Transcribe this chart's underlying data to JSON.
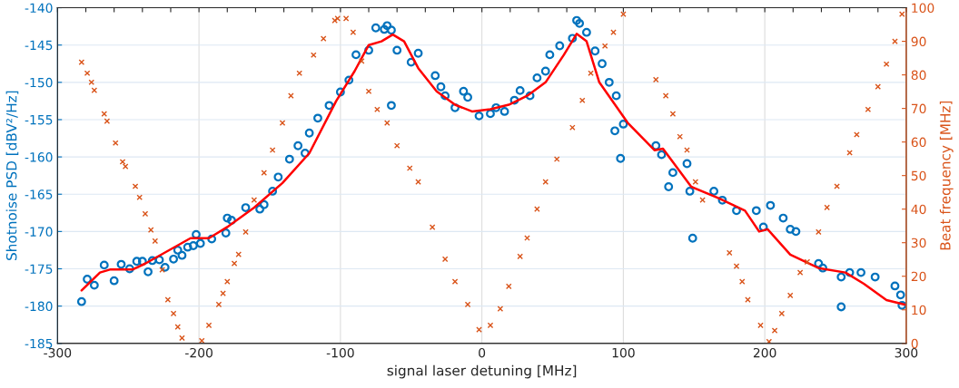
{
  "chart_data": {
    "type": "scatter",
    "xlabel": "signal laser detuning [MHz]",
    "ylabel": "Shotnoise PSD [dBV²/Hz]",
    "y2label": "Beat frequency [MHz]",
    "xlim": [
      -300,
      300
    ],
    "xticks": [
      -300,
      {
        "value": -280,
        "label": null
      },
      {
        "value": -260,
        "label": null
      },
      {
        "value": -240,
        "label": null
      },
      {
        "value": -220,
        "label": null
      },
      -200,
      {
        "value": -180,
        "label": null
      },
      {
        "value": -160,
        "label": null
      },
      {
        "value": -140,
        "label": null
      },
      {
        "value": -120,
        "label": null
      },
      -100,
      {
        "value": -80,
        "label": null
      },
      {
        "value": -60,
        "label": null
      },
      {
        "value": -40,
        "label": null
      },
      {
        "value": -20,
        "label": null
      },
      0,
      {
        "value": 20,
        "label": null
      },
      {
        "value": 40,
        "label": null
      },
      {
        "value": 60,
        "label": null
      },
      {
        "value": 80,
        "label": null
      },
      100,
      {
        "value": 120,
        "label": null
      },
      {
        "value": 140,
        "label": null
      },
      {
        "value": 160,
        "label": null
      },
      {
        "value": 180,
        "label": null
      },
      200,
      {
        "value": 220,
        "label": null
      },
      {
        "value": 240,
        "label": null
      },
      {
        "value": 260,
        "label": null
      },
      {
        "value": 280,
        "label": null
      },
      300
    ],
    "ylim": [
      -185,
      -140
    ],
    "yticks": [
      -185,
      -180,
      -175,
      -170,
      -165,
      -160,
      -155,
      -150,
      -145,
      -140
    ],
    "y2lim": [
      0,
      100
    ],
    "y2ticks": [
      0,
      10,
      20,
      30,
      40,
      50,
      60,
      70,
      80,
      90,
      100
    ],
    "grid": true,
    "series": [
      {
        "marker": "circle",
        "color": "#0072bd",
        "x": [
          -283,
          -279,
          -274,
          -267,
          -260,
          -255,
          -249,
          -244,
          -240,
          -236,
          -233,
          -228,
          -224,
          -218,
          -215,
          -212,
          -208,
          -204,
          -202,
          -199,
          -191,
          -181,
          -180,
          -177,
          -167,
          -157,
          -154,
          -148,
          -144,
          -136,
          -130,
          -125,
          -122,
          -116,
          -108,
          -100,
          -94,
          -89,
          -80,
          -75,
          -69,
          -67,
          -64,
          -64,
          -60,
          -50,
          -45,
          -33,
          -29,
          -26,
          -19,
          -13,
          -10,
          -2,
          6,
          10,
          16,
          23,
          27,
          34,
          39,
          45,
          48,
          55,
          64,
          67,
          69,
          74,
          80,
          85,
          90,
          95,
          100,
          94,
          98,
          123,
          127,
          135,
          132,
          145,
          147,
          149,
          164,
          170,
          180,
          194,
          199,
          204,
          213,
          218,
          222,
          238,
          241,
          254,
          254,
          260,
          268,
          278,
          292,
          296,
          297
        ],
        "values": [
          -179.4,
          -176.4,
          -177.2,
          -174.5,
          -176.6,
          -174.4,
          -175.0,
          -174.0,
          -174.0,
          -175.4,
          -173.9,
          -173.8,
          -174.8,
          -173.7,
          -172.5,
          -173.2,
          -172.1,
          -171.9,
          -170.4,
          -171.6,
          -171.0,
          -170.2,
          -168.2,
          -168.5,
          -166.8,
          -167.0,
          -166.4,
          -164.6,
          -162.7,
          -160.3,
          -158.5,
          -159.5,
          -156.8,
          -154.8,
          -153.1,
          -151.3,
          -149.7,
          -146.3,
          -145.7,
          -142.7,
          -142.9,
          -142.4,
          -143.0,
          -153.1,
          -145.7,
          -147.3,
          -146.1,
          -149.1,
          -150.6,
          -151.8,
          -153.4,
          -151.2,
          -152.0,
          -154.5,
          -154.2,
          -153.4,
          -153.9,
          -152.4,
          -151.1,
          -151.8,
          -149.4,
          -148.5,
          -146.3,
          -145.1,
          -144.1,
          -141.7,
          -142.1,
          -143.3,
          -145.8,
          -147.5,
          -150.0,
          -151.8,
          -155.6,
          -156.5,
          -160.2,
          -158.5,
          -159.7,
          -162.1,
          -164.0,
          -160.9,
          -164.6,
          -170.9,
          -164.6,
          -165.8,
          -167.2,
          -167.2,
          -169.4,
          -166.5,
          -168.2,
          -169.7,
          -170.0,
          -174.3,
          -174.9,
          -176.1,
          -180.1,
          -175.5,
          -175.5,
          -176.1,
          -177.3,
          -178.5,
          -179.9
        ]
      },
      {
        "type": "line",
        "marker": "none",
        "color": "#ff0000",
        "x": [
          -283,
          -270,
          -263,
          -247,
          -238,
          -222,
          -206,
          -193,
          -180,
          -161,
          -141,
          -122,
          -103,
          -90,
          -80,
          -71,
          -63,
          -55,
          -45,
          -32,
          -19,
          -7,
          6,
          19,
          32,
          45,
          58,
          67,
          74,
          83,
          103,
          122,
          128,
          148,
          167,
          186,
          196,
          202,
          218,
          238,
          257,
          270,
          286,
          299
        ],
        "values": [
          -177.9,
          -175.5,
          -175.1,
          -175.1,
          -174.3,
          -172.6,
          -170.9,
          -170.9,
          -169.4,
          -166.8,
          -163.5,
          -159.5,
          -152.5,
          -148.5,
          -145.0,
          -144.5,
          -143.6,
          -144.5,
          -148.1,
          -151.2,
          -153.0,
          -153.9,
          -153.6,
          -153.0,
          -151.8,
          -150.0,
          -146.3,
          -143.5,
          -144.5,
          -150.0,
          -155.4,
          -159.1,
          -158.9,
          -164.0,
          -165.5,
          -167.2,
          -170.0,
          -169.7,
          -173.1,
          -174.9,
          -175.5,
          -177.0,
          -179.2,
          -179.8
        ]
      },
      {
        "marker": "cross",
        "axis": "y2",
        "color": "#d95319",
        "x": [
          -283,
          -279,
          -276,
          -274,
          -267,
          -265,
          -259,
          -254,
          -252,
          -245,
          -242,
          -238,
          -234,
          -231,
          -226,
          -222,
          -218,
          -215,
          -212,
          -198,
          -193,
          -186,
          -183,
          -180,
          -175,
          -172,
          -167,
          -161,
          -154,
          -148,
          -141,
          -135,
          -129,
          -119,
          -112,
          -104,
          -102,
          -96,
          -91,
          -85,
          -80,
          -74,
          -67,
          -60,
          -51,
          -45,
          -35,
          -26,
          -19,
          -10,
          -2,
          6,
          13,
          19,
          27,
          32,
          39,
          45,
          53,
          64,
          71,
          77,
          87,
          93,
          100,
          123,
          130,
          135,
          140,
          145,
          151,
          156,
          175,
          180,
          184,
          188,
          197,
          203,
          207,
          212,
          218,
          225,
          230,
          238,
          244,
          251,
          260,
          265,
          273,
          280,
          286,
          292,
          297
        ],
        "values": [
          83.8,
          80.5,
          77.8,
          75.4,
          68.4,
          66.2,
          59.7,
          54.1,
          52.7,
          46.8,
          43.5,
          38.6,
          33.8,
          30.5,
          21.9,
          13.0,
          8.9,
          4.9,
          1.6,
          0.8,
          5.4,
          11.6,
          14.9,
          18.4,
          23.8,
          26.5,
          33.2,
          42.7,
          50.8,
          57.6,
          65.7,
          73.8,
          80.5,
          85.9,
          90.8,
          96.2,
          96.8,
          96.8,
          92.7,
          84.1,
          75.1,
          69.7,
          65.7,
          58.9,
          52.2,
          48.1,
          34.6,
          25.1,
          18.4,
          11.6,
          4.1,
          5.4,
          10.3,
          17.0,
          25.9,
          31.4,
          40.0,
          48.1,
          54.9,
          64.3,
          72.4,
          80.5,
          88.6,
          92.7,
          98.1,
          78.6,
          73.8,
          68.4,
          61.6,
          57.6,
          48.1,
          42.7,
          27.0,
          23.0,
          18.4,
          13.0,
          5.4,
          0.5,
          3.8,
          8.9,
          14.3,
          21.1,
          24.3,
          33.2,
          40.5,
          46.8,
          56.8,
          62.2,
          69.7,
          76.5,
          83.2,
          90.0,
          98.1
        ]
      }
    ]
  }
}
